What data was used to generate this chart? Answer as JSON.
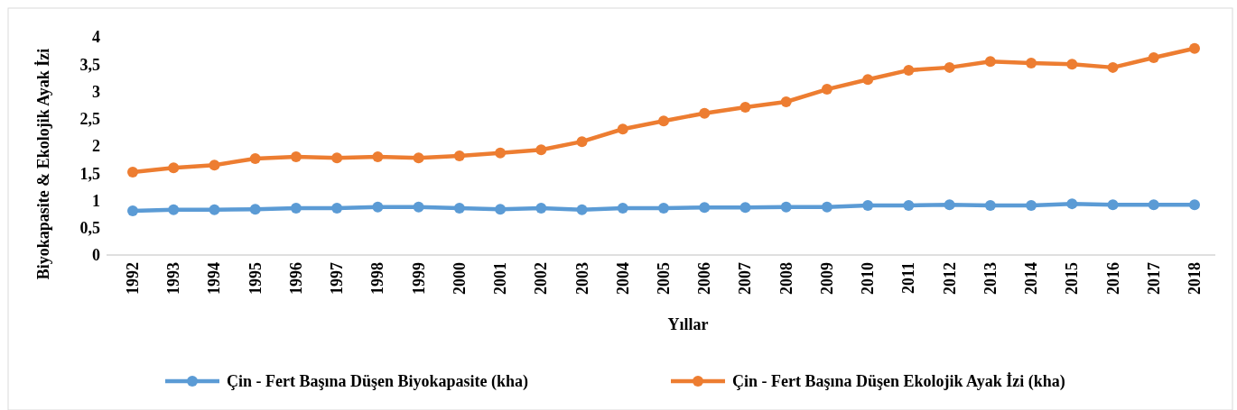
{
  "chart_data": {
    "type": "line",
    "xlabel": "Yıllar",
    "ylabel": "Biyokapasite & Ekolojik Ayak İzi",
    "categories": [
      "1992",
      "1993",
      "1994",
      "1995",
      "1996",
      "1997",
      "1998",
      "1999",
      "2000",
      "2001",
      "2002",
      "2003",
      "2004",
      "2005",
      "2006",
      "2007",
      "2008",
      "2009",
      "2010",
      "2011",
      "2012",
      "2013",
      "2014",
      "2015",
      "2016",
      "2017",
      "2018"
    ],
    "series": [
      {
        "name": "Çin -  Fert Başına Düşen Biyokapasite (kha)",
        "color": "#5b9bd5",
        "values": [
          0.81,
          0.83,
          0.83,
          0.84,
          0.86,
          0.86,
          0.88,
          0.88,
          0.86,
          0.84,
          0.86,
          0.83,
          0.86,
          0.86,
          0.87,
          0.87,
          0.88,
          0.88,
          0.91,
          0.91,
          0.92,
          0.91,
          0.91,
          0.94,
          0.92,
          0.92,
          0.92
        ]
      },
      {
        "name": "Çin -  Fert Başına Düşen Ekolojik Ayak İzi (kha)",
        "color": "#ed7d31",
        "values": [
          1.52,
          1.6,
          1.65,
          1.77,
          1.8,
          1.78,
          1.8,
          1.78,
          1.82,
          1.87,
          1.93,
          2.08,
          2.31,
          2.46,
          2.6,
          2.71,
          2.81,
          3.04,
          3.22,
          3.39,
          3.44,
          3.55,
          3.52,
          3.5,
          3.44,
          3.62,
          3.79
        ]
      }
    ],
    "ylim": [
      0,
      4
    ],
    "yticks": [
      0,
      {
        "value": 0.5,
        "label": "0,5"
      },
      1,
      {
        "value": 1.5,
        "label": "1,5"
      },
      2,
      {
        "value": 2.5,
        "label": "2,5"
      },
      3,
      {
        "value": 3.5,
        "label": "3,5"
      },
      4
    ],
    "grid": false,
    "legend": "bottom",
    "marker": "circle",
    "line_style": "solid"
  }
}
